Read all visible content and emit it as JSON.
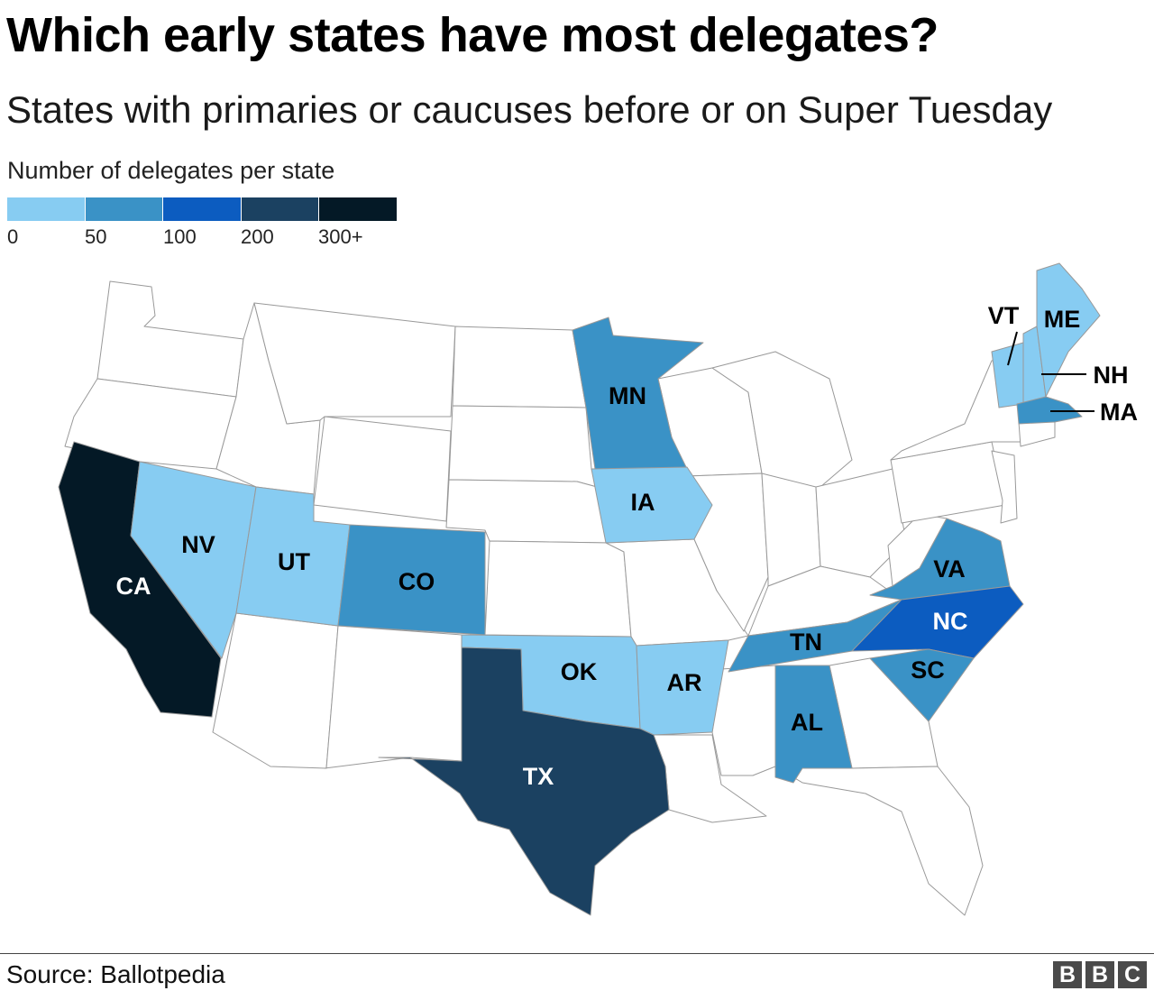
{
  "title": "Which early states have most delegates?",
  "subtitle": "States with primaries or caucuses before or on Super Tuesday",
  "legend": {
    "title": "Number of delegates per state",
    "colors": [
      "#87ccf2",
      "#3a92c6",
      "#0c5cc0",
      "#1b4161",
      "#041926"
    ],
    "ticks": [
      "0",
      "50",
      "100",
      "200",
      "300+"
    ]
  },
  "map": {
    "base_fill": "#ffffff",
    "border_color": "#999999",
    "states": [
      {
        "abbr": "CA",
        "bucket": "300+"
      },
      {
        "abbr": "NV",
        "bucket": "0-50"
      },
      {
        "abbr": "UT",
        "bucket": "0-50"
      },
      {
        "abbr": "CO",
        "bucket": "50-100"
      },
      {
        "abbr": "MN",
        "bucket": "50-100"
      },
      {
        "abbr": "IA",
        "bucket": "0-50"
      },
      {
        "abbr": "OK",
        "bucket": "0-50"
      },
      {
        "abbr": "AR",
        "bucket": "0-50"
      },
      {
        "abbr": "TX",
        "bucket": "200-300"
      },
      {
        "abbr": "TN",
        "bucket": "50-100"
      },
      {
        "abbr": "AL",
        "bucket": "50-100"
      },
      {
        "abbr": "VA",
        "bucket": "50-100"
      },
      {
        "abbr": "NC",
        "bucket": "100-200"
      },
      {
        "abbr": "SC",
        "bucket": "50-100"
      },
      {
        "abbr": "VT",
        "bucket": "0-50"
      },
      {
        "abbr": "ME",
        "bucket": "0-50"
      },
      {
        "abbr": "NH",
        "bucket": "0-50"
      },
      {
        "abbr": "MA",
        "bucket": "50-100"
      }
    ]
  },
  "source": "Source: Ballotpedia",
  "logo": [
    "B",
    "B",
    "C"
  ]
}
